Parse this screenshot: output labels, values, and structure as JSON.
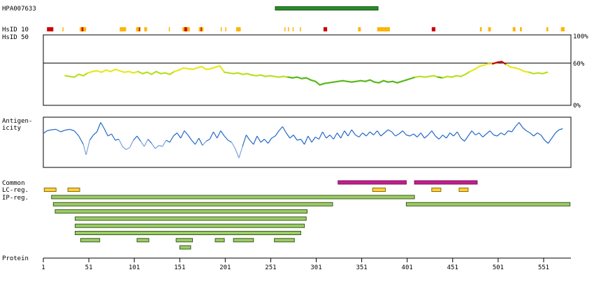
{
  "header": {
    "antibody_id": "HPA007633"
  },
  "labels": {
    "hsid10": "HsID 10",
    "hsid50": "HsID 50",
    "antigenicity_line1": "Antigen-",
    "antigenicity_line2": "icity",
    "common": "Common",
    "lc_reg": "LC-reg.",
    "ip_reg": "IP-reg.",
    "protein": "Protein"
  },
  "identity_axis": {
    "top": "100%",
    "mid": "60%",
    "bottom": "0%"
  },
  "protein_axis": {
    "length": 581,
    "ticks": [
      "1",
      "51",
      "101",
      "151",
      "201",
      "251",
      "301",
      "351",
      "401",
      "451",
      "501",
      "551"
    ]
  },
  "colors": {
    "antigen_bar": "#2a8a2a",
    "red_mark": "#cc0000",
    "orange_mark": "#ffb400",
    "common_bar": "#c0208c",
    "lc_bar": "#ffd040",
    "ip_bar": "#9ccc65",
    "antigenicity_line": "#2468c8",
    "antigenicity_low": "#7aa0dc"
  },
  "antigen_region": {
    "start": 256,
    "end": 369
  },
  "hsid10_marks": [
    {
      "start": 5,
      "end": 12,
      "color": "red"
    },
    {
      "start": 22,
      "end": 23,
      "color": "orange"
    },
    {
      "start": 41,
      "end": 48,
      "color": "orange"
    },
    {
      "start": 43,
      "end": 45,
      "color": "red"
    },
    {
      "start": 85,
      "end": 92,
      "color": "orange"
    },
    {
      "start": 103,
      "end": 108,
      "color": "orange"
    },
    {
      "start": 106,
      "end": 107,
      "color": "red"
    },
    {
      "start": 112,
      "end": 115,
      "color": "orange"
    },
    {
      "start": 139,
      "end": 140,
      "color": "orange"
    },
    {
      "start": 154,
      "end": 162,
      "color": "orange"
    },
    {
      "start": 156,
      "end": 159,
      "color": "red"
    },
    {
      "start": 172,
      "end": 177,
      "color": "orange"
    },
    {
      "start": 174,
      "end": 175,
      "color": "red"
    },
    {
      "start": 196,
      "end": 197,
      "color": "orange"
    },
    {
      "start": 201,
      "end": 202,
      "color": "orange"
    },
    {
      "start": 213,
      "end": 218,
      "color": "orange"
    },
    {
      "start": 266,
      "end": 267,
      "color": "orange"
    },
    {
      "start": 270,
      "end": 271,
      "color": "orange"
    },
    {
      "start": 275,
      "end": 276,
      "color": "orange"
    },
    {
      "start": 283,
      "end": 284,
      "color": "orange"
    },
    {
      "start": 309,
      "end": 313,
      "color": "red"
    },
    {
      "start": 347,
      "end": 350,
      "color": "orange"
    },
    {
      "start": 368,
      "end": 382,
      "color": "orange"
    },
    {
      "start": 428,
      "end": 432,
      "color": "red"
    },
    {
      "start": 481,
      "end": 483,
      "color": "orange"
    },
    {
      "start": 490,
      "end": 493,
      "color": "orange"
    },
    {
      "start": 517,
      "end": 520,
      "color": "orange"
    },
    {
      "start": 525,
      "end": 527,
      "color": "orange"
    },
    {
      "start": 554,
      "end": 556,
      "color": "orange"
    },
    {
      "start": 570,
      "end": 574,
      "color": "orange"
    }
  ],
  "common_bars": [
    {
      "start": 325,
      "end": 400
    },
    {
      "start": 409,
      "end": 478
    }
  ],
  "lc_bars": [
    {
      "start": 2,
      "end": 15
    },
    {
      "start": 28,
      "end": 41
    },
    {
      "start": 363,
      "end": 377
    },
    {
      "start": 428,
      "end": 438
    },
    {
      "start": 458,
      "end": 468
    }
  ],
  "ip_bars": [
    {
      "row": 0,
      "start": 10,
      "end": 409
    },
    {
      "row": 1,
      "start": 12,
      "end": 319
    },
    {
      "row": 1,
      "start": 400,
      "end": 580
    },
    {
      "row": 2,
      "start": 14,
      "end": 291
    },
    {
      "row": 3,
      "start": 36,
      "end": 290
    },
    {
      "row": 4,
      "start": 36,
      "end": 288
    },
    {
      "row": 5,
      "start": 36,
      "end": 284
    },
    {
      "row": 6,
      "start": 42,
      "end": 63
    },
    {
      "row": 6,
      "start": 104,
      "end": 117
    },
    {
      "row": 6,
      "start": 147,
      "end": 165
    },
    {
      "row": 6,
      "start": 190,
      "end": 200
    },
    {
      "row": 6,
      "start": 210,
      "end": 232
    },
    {
      "row": 6,
      "start": 255,
      "end": 277
    },
    {
      "row": 7,
      "start": 151,
      "end": 163
    }
  ],
  "identity_trace": [
    [
      25,
      42
    ],
    [
      30,
      41
    ],
    [
      35,
      40
    ],
    [
      40,
      44
    ],
    [
      45,
      42
    ],
    [
      50,
      46
    ],
    [
      55,
      48
    ],
    [
      60,
      49
    ],
    [
      65,
      47
    ],
    [
      70,
      50
    ],
    [
      75,
      48
    ],
    [
      80,
      51
    ],
    [
      85,
      49
    ],
    [
      90,
      47
    ],
    [
      95,
      48
    ],
    [
      100,
      46
    ],
    [
      105,
      48
    ],
    [
      110,
      45
    ],
    [
      115,
      47
    ],
    [
      120,
      44
    ],
    [
      125,
      48
    ],
    [
      130,
      45
    ],
    [
      135,
      46
    ],
    [
      140,
      44
    ],
    [
      145,
      48
    ],
    [
      150,
      50
    ],
    [
      155,
      53
    ],
    [
      160,
      52
    ],
    [
      165,
      51
    ],
    [
      170,
      53
    ],
    [
      175,
      55
    ],
    [
      180,
      51
    ],
    [
      185,
      52
    ],
    [
      190,
      54
    ],
    [
      195,
      56
    ],
    [
      200,
      47
    ],
    [
      205,
      46
    ],
    [
      210,
      45
    ],
    [
      215,
      46
    ],
    [
      220,
      44
    ],
    [
      225,
      45
    ],
    [
      230,
      43
    ],
    [
      235,
      42
    ],
    [
      240,
      43
    ],
    [
      245,
      41
    ],
    [
      250,
      42
    ],
    [
      255,
      41
    ],
    [
      260,
      40
    ],
    [
      265,
      41
    ],
    [
      270,
      40
    ],
    [
      275,
      39
    ],
    [
      280,
      40
    ],
    [
      285,
      38
    ],
    [
      290,
      39
    ],
    [
      295,
      36
    ],
    [
      300,
      34
    ],
    [
      305,
      29
    ],
    [
      310,
      31
    ],
    [
      315,
      32
    ],
    [
      320,
      33
    ],
    [
      325,
      34
    ],
    [
      330,
      35
    ],
    [
      335,
      34
    ],
    [
      340,
      33
    ],
    [
      345,
      34
    ],
    [
      350,
      35
    ],
    [
      355,
      34
    ],
    [
      360,
      36
    ],
    [
      365,
      33
    ],
    [
      370,
      32
    ],
    [
      375,
      35
    ],
    [
      380,
      33
    ],
    [
      385,
      34
    ],
    [
      390,
      32
    ],
    [
      395,
      34
    ],
    [
      400,
      36
    ],
    [
      405,
      38
    ],
    [
      410,
      40
    ],
    [
      415,
      41
    ],
    [
      420,
      40
    ],
    [
      425,
      41
    ],
    [
      430,
      42
    ],
    [
      435,
      40
    ],
    [
      440,
      39
    ],
    [
      445,
      41
    ],
    [
      450,
      40
    ],
    [
      455,
      42
    ],
    [
      460,
      41
    ],
    [
      465,
      44
    ],
    [
      470,
      48
    ],
    [
      475,
      51
    ],
    [
      480,
      55
    ],
    [
      485,
      57
    ],
    [
      490,
      59
    ],
    [
      495,
      59
    ],
    [
      500,
      61
    ],
    [
      505,
      62
    ],
    [
      510,
      58
    ],
    [
      515,
      54
    ],
    [
      520,
      53
    ],
    [
      525,
      51
    ],
    [
      530,
      48
    ],
    [
      535,
      47
    ],
    [
      540,
      45
    ],
    [
      545,
      46
    ],
    [
      550,
      45
    ],
    [
      555,
      47
    ]
  ],
  "antigenicity_trace": [
    [
      1,
      0.42
    ],
    [
      5,
      0.55
    ],
    [
      10,
      0.6
    ],
    [
      15,
      0.62
    ],
    [
      20,
      0.5
    ],
    [
      25,
      0.58
    ],
    [
      30,
      0.62
    ],
    [
      35,
      0.55
    ],
    [
      40,
      0.3
    ],
    [
      45,
      -0.1
    ],
    [
      48,
      -0.6
    ],
    [
      52,
      0.1
    ],
    [
      56,
      0.35
    ],
    [
      60,
      0.5
    ],
    [
      64,
      0.95
    ],
    [
      68,
      0.65
    ],
    [
      72,
      0.3
    ],
    [
      76,
      0.4
    ],
    [
      80,
      0.1
    ],
    [
      84,
      0.15
    ],
    [
      88,
      -0.2
    ],
    [
      92,
      -0.35
    ],
    [
      96,
      -0.25
    ],
    [
      100,
      0.1
    ],
    [
      104,
      0.3
    ],
    [
      108,
      0.05
    ],
    [
      112,
      -0.2
    ],
    [
      116,
      0.15
    ],
    [
      120,
      -0.05
    ],
    [
      124,
      -0.3
    ],
    [
      128,
      -0.15
    ],
    [
      132,
      -0.2
    ],
    [
      136,
      0.1
    ],
    [
      140,
      0.0
    ],
    [
      144,
      0.3
    ],
    [
      148,
      0.45
    ],
    [
      152,
      0.2
    ],
    [
      156,
      0.55
    ],
    [
      160,
      0.35
    ],
    [
      164,
      0.1
    ],
    [
      168,
      -0.1
    ],
    [
      172,
      0.2
    ],
    [
      176,
      -0.15
    ],
    [
      180,
      0.05
    ],
    [
      184,
      0.15
    ],
    [
      188,
      0.5
    ],
    [
      192,
      0.2
    ],
    [
      196,
      0.55
    ],
    [
      200,
      0.3
    ],
    [
      204,
      0.1
    ],
    [
      208,
      0.0
    ],
    [
      212,
      -0.3
    ],
    [
      216,
      -0.75
    ],
    [
      220,
      -0.2
    ],
    [
      224,
      0.35
    ],
    [
      228,
      0.1
    ],
    [
      232,
      -0.1
    ],
    [
      236,
      0.3
    ],
    [
      240,
      0.0
    ],
    [
      244,
      0.15
    ],
    [
      248,
      -0.05
    ],
    [
      252,
      0.2
    ],
    [
      256,
      0.3
    ],
    [
      260,
      0.55
    ],
    [
      264,
      0.75
    ],
    [
      268,
      0.45
    ],
    [
      272,
      0.2
    ],
    [
      276,
      0.35
    ],
    [
      280,
      0.1
    ],
    [
      284,
      0.15
    ],
    [
      288,
      -0.1
    ],
    [
      292,
      0.3
    ],
    [
      296,
      0.0
    ],
    [
      300,
      0.25
    ],
    [
      304,
      0.15
    ],
    [
      308,
      0.5
    ],
    [
      312,
      0.2
    ],
    [
      316,
      0.35
    ],
    [
      320,
      0.15
    ],
    [
      324,
      0.45
    ],
    [
      328,
      0.2
    ],
    [
      332,
      0.55
    ],
    [
      336,
      0.3
    ],
    [
      340,
      0.6
    ],
    [
      344,
      0.35
    ],
    [
      348,
      0.25
    ],
    [
      352,
      0.45
    ],
    [
      356,
      0.3
    ],
    [
      360,
      0.5
    ],
    [
      364,
      0.35
    ],
    [
      368,
      0.55
    ],
    [
      372,
      0.3
    ],
    [
      376,
      0.45
    ],
    [
      380,
      0.6
    ],
    [
      384,
      0.5
    ],
    [
      388,
      0.3
    ],
    [
      392,
      0.4
    ],
    [
      396,
      0.55
    ],
    [
      400,
      0.35
    ],
    [
      404,
      0.3
    ],
    [
      408,
      0.4
    ],
    [
      412,
      0.25
    ],
    [
      416,
      0.45
    ],
    [
      420,
      0.2
    ],
    [
      424,
      0.35
    ],
    [
      428,
      0.55
    ],
    [
      432,
      0.3
    ],
    [
      436,
      0.15
    ],
    [
      440,
      0.35
    ],
    [
      444,
      0.2
    ],
    [
      448,
      0.45
    ],
    [
      452,
      0.3
    ],
    [
      456,
      0.5
    ],
    [
      460,
      0.2
    ],
    [
      464,
      0.05
    ],
    [
      468,
      0.3
    ],
    [
      472,
      0.55
    ],
    [
      476,
      0.35
    ],
    [
      480,
      0.45
    ],
    [
      484,
      0.25
    ],
    [
      488,
      0.4
    ],
    [
      492,
      0.55
    ],
    [
      496,
      0.35
    ],
    [
      500,
      0.3
    ],
    [
      504,
      0.45
    ],
    [
      508,
      0.35
    ],
    [
      512,
      0.55
    ],
    [
      516,
      0.5
    ],
    [
      520,
      0.75
    ],
    [
      524,
      0.95
    ],
    [
      528,
      0.7
    ],
    [
      532,
      0.55
    ],
    [
      536,
      0.45
    ],
    [
      540,
      0.3
    ],
    [
      544,
      0.45
    ],
    [
      548,
      0.35
    ],
    [
      552,
      0.1
    ],
    [
      556,
      -0.05
    ],
    [
      560,
      0.2
    ],
    [
      564,
      0.45
    ],
    [
      568,
      0.6
    ],
    [
      572,
      0.65
    ]
  ]
}
